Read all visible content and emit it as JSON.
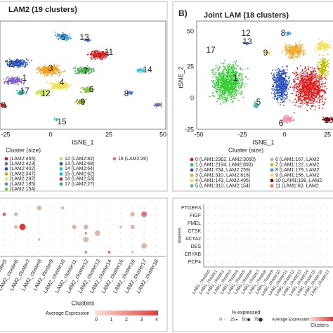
{
  "panel_a": {
    "title": "LAM2 (19 clusters)",
    "xticks": [
      "-25",
      "0",
      "25",
      "50"
    ],
    "xlabel": "tSNE_1",
    "legend_title": "Cluster (size)",
    "legend": [
      "(LAM2:455)",
      "(LAM2:423)",
      "(LAM2:402)",
      "(LAM2:347)",
      "(LAM2:287)",
      "(LAM2:185)",
      "(LAM2:154)",
      "12 (LAM2:82)",
      "13 (LAM2:68)",
      "14 (LAM2:64)",
      "15 (LAM2:62)",
      "16 (LAM2:53)",
      "17 (LAM2:27)",
      "18 (LAM2:26)"
    ],
    "cluster_labels": [
      "5",
      "13",
      "11",
      "2",
      "3",
      "7",
      "14",
      "1",
      "4",
      "12",
      "6",
      "8",
      "9",
      "17",
      "0",
      "15"
    ]
  },
  "panel_b": {
    "tag": "B)",
    "title": "Joint LAM (18 clusters)",
    "yticks": [
      "50",
      "25",
      "0",
      "-25"
    ],
    "xticks": [
      "-50",
      "-25",
      "0",
      "25"
    ],
    "ylabel": "tSNE_2",
    "xlabel": "tSNE_1",
    "legend_title": "Cluster (size)",
    "legend": [
      "0 (LAM1:2362, LAM2:3050)",
      "1 (LAM1:2194, LAM2:893)",
      "2 (LAM1:734, LAM2:259)",
      "3 (LAM1:310, LAM2:618)",
      "4 (LAM1:143, LAM2:495)",
      "5 (LAM1:310, LAM2:154)",
      "6 (LAM1:167, LAM2",
      "7 (LAM1:122, LAM2",
      "8 (LAM1:179, LAM2",
      "9 (LAM1:156, LAM2",
      "10 (LAM1:198, LAM2",
      "11 (LAM1:60, LAM2"
    ],
    "cluster_labels": [
      "12",
      "13",
      "8",
      "17",
      "9",
      "1",
      "5",
      "6",
      "10"
    ]
  },
  "panel_c": {
    "x_labels": [
      "_cluster5",
      "LAM2_cluster6",
      "LAM2_cluster7",
      "LAM2_cluster8",
      "LAM2_cluster9",
      "LAM2_cluster10",
      "LAM2_cluster11",
      "LAM2_cluster12",
      "LAM2_cluster13",
      "LAM2_cluster14",
      "LAM2_cluster15",
      "LAM2_cluster16",
      "LAM2_cluster17",
      "LAM2_cluster18"
    ],
    "xlabel": "Clusters",
    "legend_title": "Average Expression",
    "legend_ticks": [
      "0",
      "1",
      "2",
      "3",
      "4"
    ]
  },
  "panel_d": {
    "markers": [
      "PTGER3",
      "FIGF",
      "PMEL",
      "CTSK",
      "ACTA2",
      "DES",
      "CRYAB",
      "PCP4"
    ],
    "ylabel": "Markers",
    "x_labels": [
      "LAM1_cluster0",
      "LAM1_cluster1",
      "LAM1_cluster2",
      "LAM1_cluster3",
      "LAM1_cluster4",
      "LAM1_cluster5",
      "LAM1_cluster6",
      "LAM1_cluster7",
      "LAM1_cluster8",
      "LAM1_cluster9",
      "LAM1_cluster10",
      "LAM1_cluster11",
      "LAM1_cluster12",
      "LAM1_cluster13",
      "LAM1_cluster14",
      "LAM1_cluster15",
      "LAM1_cluster16",
      "LAM1_cluster17"
    ],
    "xlabel": "Clusters",
    "size_title": "% expressed",
    "size_ticks": [
      "0",
      "25",
      "50",
      "75"
    ],
    "legend_title": "Average Expression"
  }
}
